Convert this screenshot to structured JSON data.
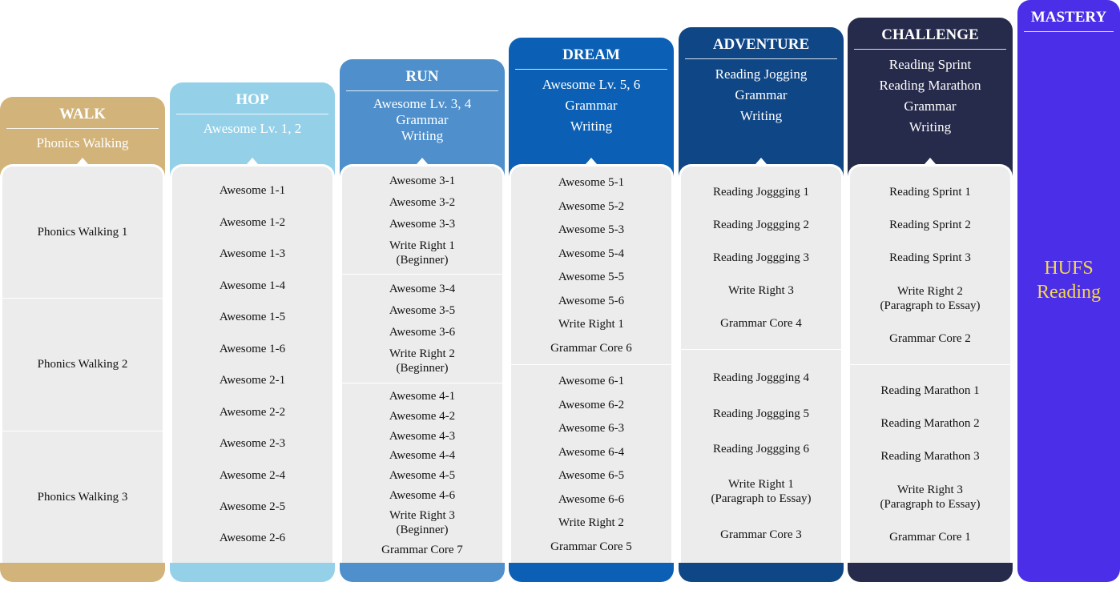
{
  "levels": [
    {
      "title": "WALK",
      "subtitle": [
        "Phonics Walking"
      ],
      "groups": [
        [
          [
            "Phonics Walking 1"
          ]
        ],
        [
          [
            "Phonics Walking 2"
          ]
        ],
        [
          [
            "Phonics Walking 3"
          ]
        ]
      ]
    },
    {
      "title": "HOP",
      "subtitle": [
        "Awesome Lv. 1, 2"
      ],
      "groups": [
        [
          [
            "Awesome 1-1"
          ],
          [
            "Awesome 1-2"
          ],
          [
            "Awesome 1-3"
          ],
          [
            "Awesome 1-4"
          ],
          [
            "Awesome 1-5"
          ],
          [
            "Awesome 1-6"
          ],
          [
            "Awesome 2-1"
          ],
          [
            "Awesome 2-2"
          ],
          [
            "Awesome 2-3"
          ],
          [
            "Awesome 2-4"
          ],
          [
            "Awesome 2-5"
          ],
          [
            "Awesome 2-6"
          ]
        ]
      ]
    },
    {
      "title": "RUN",
      "subtitle": [
        "Awesome Lv. 3, 4",
        "Grammar",
        "Writing"
      ],
      "groups": [
        [
          [
            "Awesome 3-1"
          ],
          [
            "Awesome 3-2"
          ],
          [
            "Awesome 3-3"
          ],
          [
            "Write Right 1",
            "(Beginner)"
          ]
        ],
        [
          [
            "Awesome 3-4"
          ],
          [
            "Awesome 3-5"
          ],
          [
            "Awesome 3-6"
          ],
          [
            "Write Right 2",
            "(Beginner)"
          ]
        ],
        [
          [
            "Awesome 4-1"
          ],
          [
            "Awesome 4-2"
          ],
          [
            "Awesome 4-3"
          ],
          [
            "Awesome 4-4"
          ],
          [
            "Awesome 4-5"
          ],
          [
            "Awesome 4-6"
          ],
          [
            "Write Right 3",
            "(Beginner)"
          ],
          [
            "Grammar Core 7"
          ]
        ]
      ]
    },
    {
      "title": "DREAM",
      "subtitle": [
        "Awesome Lv. 5, 6",
        "Grammar",
        "Writing"
      ],
      "groups": [
        [
          [
            "Awesome 5-1"
          ],
          [
            "Awesome 5-2"
          ],
          [
            "Awesome 5-3"
          ],
          [
            "Awesome 5-4"
          ],
          [
            "Awesome 5-5"
          ],
          [
            "Awesome 5-6"
          ],
          [
            "Write Right 1"
          ],
          [
            "Grammar Core 6"
          ]
        ],
        [
          [
            "Awesome 6-1"
          ],
          [
            "Awesome 6-2"
          ],
          [
            "Awesome 6-3"
          ],
          [
            "Awesome 6-4"
          ],
          [
            "Awesome 6-5"
          ],
          [
            "Awesome 6-6"
          ],
          [
            "Write Right 2"
          ],
          [
            "Grammar Core 5"
          ]
        ]
      ]
    },
    {
      "title": "ADVENTURE",
      "subtitle": [
        "Reading Jogging",
        "Grammar",
        "Writing"
      ],
      "groups": [
        [
          [
            "Reading Joggging 1"
          ],
          [
            "Reading Joggging 2"
          ],
          [
            "Reading Joggging 3"
          ],
          [
            "Write Right 3"
          ],
          [
            "Grammar Core 4"
          ]
        ],
        [
          [
            "Reading Joggging 4"
          ],
          [
            "Reading Joggging 5"
          ],
          [
            "Reading Joggging 6"
          ],
          [
            "Write Right 1",
            "(Paragraph to Essay)"
          ],
          [
            "Grammar Core 3"
          ]
        ]
      ]
    },
    {
      "title": "CHALLENGE",
      "subtitle": [
        "Reading Sprint",
        "Reading Marathon",
        "Grammar",
        "Writing"
      ],
      "groups": [
        [
          [
            "Reading Sprint 1"
          ],
          [
            "Reading Sprint 2"
          ],
          [
            "Reading Sprint 3"
          ],
          [
            "Write Right 2",
            "(Paragraph to Essay)"
          ],
          [
            "Grammar Core 2"
          ]
        ],
        [
          [
            "Reading Marathon 1"
          ],
          [
            "Reading Marathon 2"
          ],
          [
            "Reading Marathon 3"
          ],
          [
            "Write Right 3",
            "(Paragraph to Essay)"
          ],
          [
            "Grammar Core 1"
          ]
        ]
      ]
    }
  ],
  "mastery": {
    "title": "MASTERY",
    "body": [
      "HUFS",
      "Reading"
    ]
  }
}
